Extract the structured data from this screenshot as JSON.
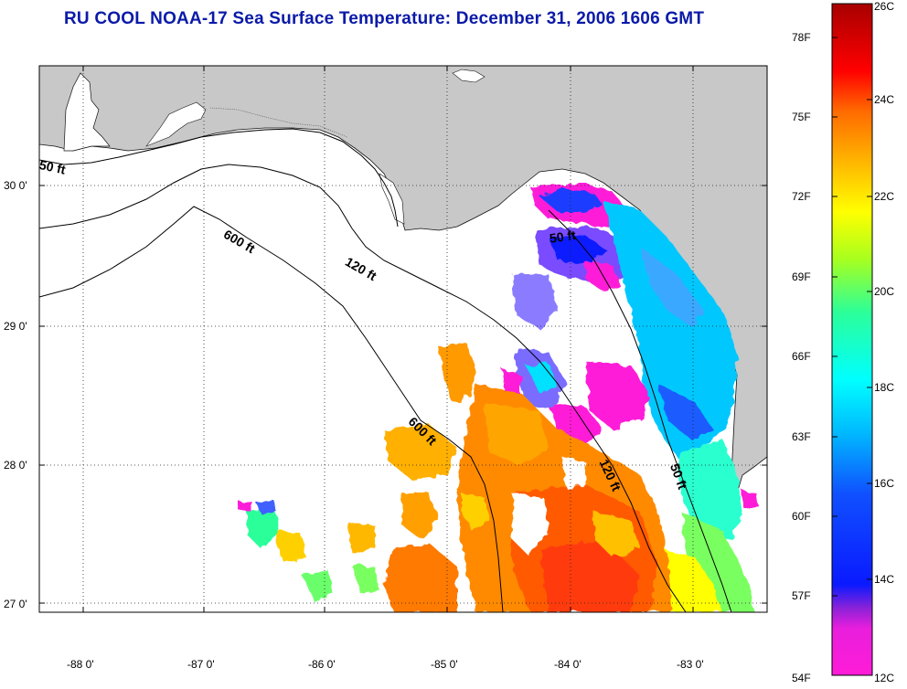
{
  "title": "RU COOL  NOAA-17  Sea Surface Temperature:  December 31, 2006 1606 GMT",
  "map": {
    "lat_ticks": [
      "30 0'",
      "29 0'",
      "28 0'",
      "27 0'"
    ],
    "lon_ticks": [
      "-88 0'",
      "-87 0'",
      "-86 0'",
      "-85 0'",
      "-84 0'",
      "-83 0'"
    ],
    "lat_range": [
      26.95,
      30.95
    ],
    "lon_range": [
      -88.3,
      -82.45
    ],
    "grid": true,
    "land_color": "#c8c8c8",
    "ocean_nodata_color": "#ffffff",
    "contour_labels": [
      {
        "text": "50 ft"
      },
      {
        "text": "600 ft"
      },
      {
        "text": "120 ft"
      },
      {
        "text": "50 ft"
      },
      {
        "text": "600 ft"
      },
      {
        "text": "120 ft"
      },
      {
        "text": "50 ft"
      }
    ]
  },
  "colorbar": {
    "fahrenheit_labels": [
      "78F",
      "75F",
      "72F",
      "69F",
      "66F",
      "63F",
      "60F",
      "57F",
      "54F"
    ],
    "celsius_labels": [
      "26C",
      "24C",
      "22C",
      "20C",
      "18C",
      "16C",
      "14C",
      "12C"
    ],
    "range_c": [
      12,
      26
    ],
    "colors": [
      "#ff1cd8",
      "#8b22d8",
      "#0a1aff",
      "#00b8ff",
      "#00ffd0",
      "#2bff9a",
      "#a8ff1e",
      "#ffff00",
      "#ffb000",
      "#ff6a00",
      "#ff0000",
      "#a80000"
    ]
  }
}
